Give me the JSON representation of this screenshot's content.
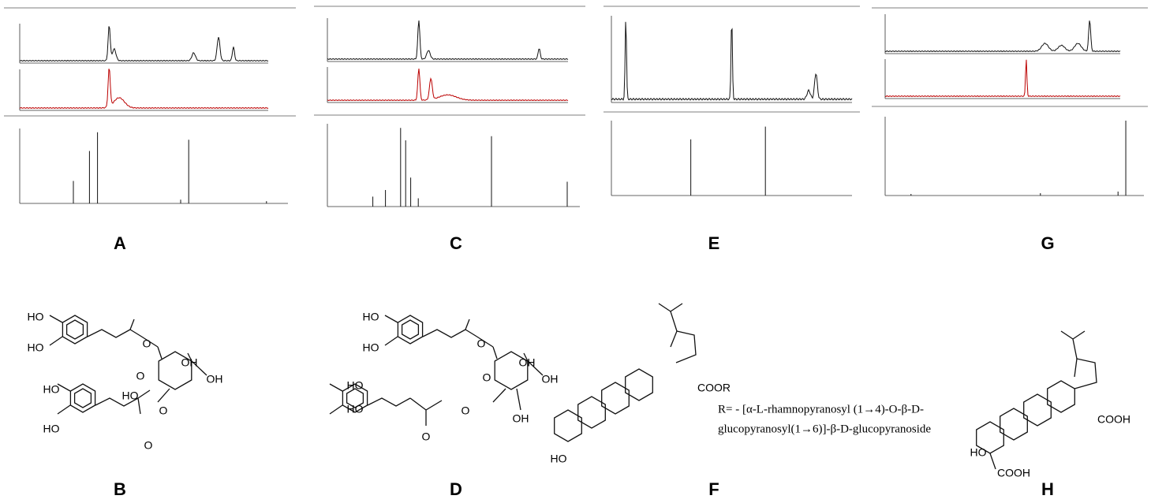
{
  "panel_labels": [
    "A",
    "C",
    "E",
    "G",
    "B",
    "D",
    "F",
    "H"
  ],
  "structure_B": {
    "atoms": [
      "HO",
      "HO",
      "O",
      "O",
      "OH",
      "OH",
      "HO",
      "HO",
      "HO",
      "O",
      "O"
    ]
  },
  "structure_D": {
    "atoms": [
      "HO",
      "HO",
      "O",
      "O",
      "OH",
      "OH",
      "HO",
      "HO",
      "O",
      "O",
      "OH"
    ]
  },
  "structure_F": {
    "atoms": [
      "HO",
      "COOR"
    ],
    "substituent": [
      "R= - [α-L-rhamnopyranosyl (1→4)-O-β-D-",
      "glucopyranosyl(1→6)]-β-D-glucopyranoside"
    ]
  },
  "structure_H": {
    "atoms": [
      "HO",
      "COOH",
      "COOH"
    ]
  }
}
